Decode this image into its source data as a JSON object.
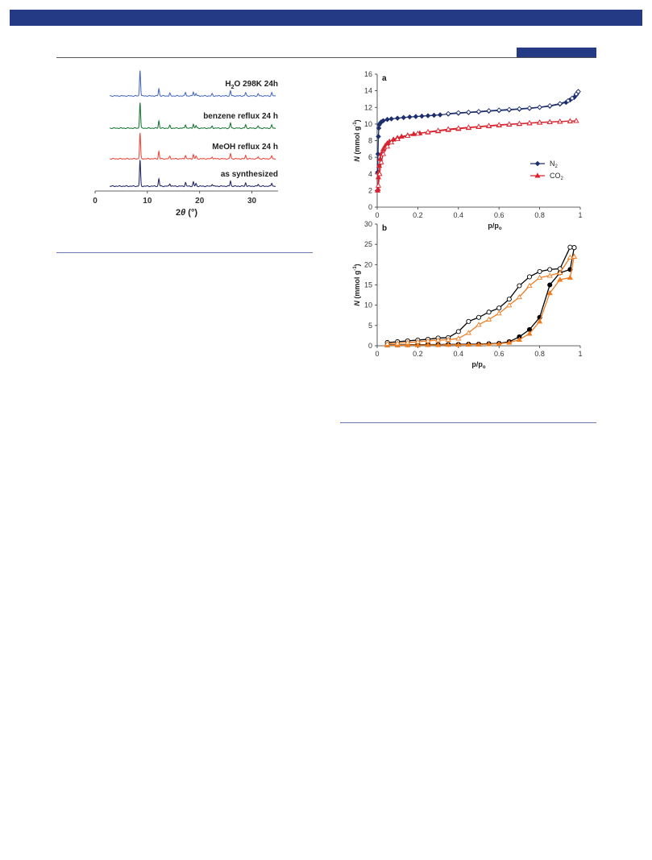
{
  "colors": {
    "header": "#253a85",
    "rule": "#6a78b8"
  },
  "chart_data": [
    {
      "id": "pxrd",
      "type": "line",
      "xlabel": "2θ (°)",
      "xlim": [
        0,
        35
      ],
      "xticks": [
        0,
        10,
        20,
        30
      ],
      "peaks": [
        8.6,
        12.2,
        14.3,
        17.3,
        18.8,
        19.3,
        22.4,
        25.9,
        28.8,
        31.2,
        33.8
      ],
      "heights": [
        1.0,
        0.28,
        0.1,
        0.14,
        0.16,
        0.1,
        0.08,
        0.2,
        0.13,
        0.08,
        0.12
      ],
      "series": [
        {
          "name": "H2O 298K 24h",
          "label_main": "H",
          "label_sub": "2",
          "label_rest": "O 298K 24h",
          "color": "#4f6ec2",
          "scale": 1.0
        },
        {
          "name": "benzene reflux 24 h",
          "label_main": "benzene reflux 24 h",
          "color": "#1f7a3a",
          "scale": 1.0
        },
        {
          "name": "MeOH reflux 24 h",
          "label_main": "MeOH reflux 24 h",
          "color": "#ec4a3f",
          "scale": 1.0
        },
        {
          "name": "as synthesized",
          "label_main": "as synthesized",
          "color": "#262a6b",
          "scale": 1.0
        }
      ]
    },
    {
      "id": "panel-a",
      "type": "scatter",
      "panel_label": "a",
      "ylabel": "N (mmol g⁻¹)",
      "xlabel": "p/p₀",
      "xlim": [
        0,
        1
      ],
      "ylim": [
        0,
        16
      ],
      "xticks": [
        0,
        0.2,
        0.4,
        0.6,
        0.8,
        1
      ],
      "yticks": [
        0,
        2,
        4,
        6,
        8,
        10,
        12,
        14,
        16
      ],
      "legend_position": "right",
      "series": [
        {
          "name": "N2",
          "legend_main": "N",
          "legend_sub": "2",
          "color": "#1d2f6e",
          "marker": "diamond",
          "adsorption": {
            "x": [
              0.002,
              0.004,
              0.006,
              0.008,
              0.01,
              0.015,
              0.02,
              0.03,
              0.05,
              0.07,
              0.1,
              0.13,
              0.16,
              0.19,
              0.22,
              0.25,
              0.28,
              0.31,
              0.35,
              0.4,
              0.45,
              0.5,
              0.55,
              0.6,
              0.65,
              0.7,
              0.75,
              0.8,
              0.85,
              0.9,
              0.93,
              0.95,
              0.97,
              0.98,
              0.985,
              0.99
            ],
            "y": [
              4.2,
              6.4,
              8.5,
              9.5,
              9.9,
              10.1,
              10.25,
              10.4,
              10.55,
              10.62,
              10.7,
              10.78,
              10.85,
              10.9,
              10.95,
              11.0,
              11.05,
              11.1,
              11.2,
              11.3,
              11.38,
              11.45,
              11.55,
              11.62,
              11.7,
              11.78,
              11.88,
              12.0,
              12.15,
              12.4,
              12.6,
              12.9,
              13.2,
              13.5,
              13.7,
              13.9
            ]
          },
          "desorption": {
            "x": [
              0.99,
              0.98,
              0.96,
              0.94,
              0.9,
              0.85,
              0.8,
              0.75,
              0.7,
              0.65,
              0.6,
              0.55,
              0.5,
              0.45,
              0.4,
              0.35
            ],
            "y": [
              13.9,
              13.6,
              13.1,
              12.8,
              12.45,
              12.2,
              12.02,
              11.92,
              11.83,
              11.75,
              11.67,
              11.6,
              11.5,
              11.42,
              11.35,
              11.25
            ]
          }
        },
        {
          "name": "CO2",
          "legend_main": "CO",
          "legend_sub": "2",
          "color": "#d9232e",
          "marker": "triangle",
          "adsorption": {
            "x": [
              0.002,
              0.004,
              0.006,
              0.008,
              0.01,
              0.015,
              0.02,
              0.03,
              0.04,
              0.05,
              0.06,
              0.08,
              0.1,
              0.12,
              0.15,
              0.18,
              0.21,
              0.25,
              0.3,
              0.35,
              0.4,
              0.45,
              0.5,
              0.55,
              0.6,
              0.65,
              0.7,
              0.75,
              0.8,
              0.85,
              0.9,
              0.95,
              0.98
            ],
            "y": [
              2.0,
              2.2,
              3.6,
              4.2,
              5.0,
              5.8,
              6.4,
              7.0,
              7.4,
              7.7,
              7.9,
              8.15,
              8.35,
              8.5,
              8.65,
              8.8,
              8.9,
              9.0,
              9.15,
              9.3,
              9.42,
              9.55,
              9.65,
              9.75,
              9.85,
              9.95,
              10.02,
              10.1,
              10.18,
              10.24,
              10.3,
              10.35,
              10.38
            ]
          },
          "desorption": {
            "x": [
              0.98,
              0.95,
              0.9,
              0.85,
              0.8,
              0.75,
              0.7,
              0.65,
              0.6,
              0.55,
              0.5,
              0.45,
              0.4,
              0.35,
              0.3,
              0.25,
              0.2,
              0.15,
              0.1,
              0.07,
              0.05,
              0.03,
              0.02,
              0.012,
              0.006
            ],
            "y": [
              10.38,
              10.35,
              10.3,
              10.25,
              10.2,
              10.12,
              10.05,
              9.98,
              9.9,
              9.8,
              9.7,
              9.6,
              9.5,
              9.38,
              9.22,
              9.05,
              8.85,
              8.6,
              8.2,
              7.8,
              7.3,
              6.4,
              5.4,
              4.0,
              2.6
            ]
          }
        }
      ]
    },
    {
      "id": "panel-b",
      "type": "scatter",
      "panel_label": "b",
      "ylabel": "N (mmol g⁻¹)",
      "xlabel": "p/p₀",
      "xlim": [
        0,
        1
      ],
      "ylim": [
        0,
        30
      ],
      "xticks": [
        0,
        0.2,
        0.4,
        0.6,
        0.8,
        1
      ],
      "yticks": [
        0,
        5,
        10,
        15,
        20,
        25,
        30
      ],
      "series": [
        {
          "name": "black circles",
          "color": "#000000",
          "marker": "circle",
          "adsorption": {
            "x": [
              0.05,
              0.1,
              0.15,
              0.2,
              0.25,
              0.3,
              0.35,
              0.4,
              0.45,
              0.5,
              0.55,
              0.6,
              0.65,
              0.7,
              0.75,
              0.8,
              0.85,
              0.9,
              0.95,
              0.97
            ],
            "y": [
              0.2,
              0.2,
              0.25,
              0.25,
              0.3,
              0.3,
              0.35,
              0.35,
              0.4,
              0.4,
              0.5,
              0.6,
              1.0,
              2.2,
              4.0,
              7.0,
              15.0,
              18.0,
              18.8,
              24.2
            ]
          },
          "desorption": {
            "x": [
              0.97,
              0.95,
              0.9,
              0.85,
              0.8,
              0.75,
              0.7,
              0.65,
              0.6,
              0.55,
              0.5,
              0.45,
              0.4,
              0.35,
              0.3,
              0.25,
              0.2,
              0.15,
              0.1,
              0.05
            ],
            "y": [
              24.2,
              24.3,
              19.0,
              18.8,
              18.3,
              17.0,
              14.8,
              11.5,
              9.3,
              8.3,
              7.0,
              6.0,
              3.5,
              2.0,
              1.9,
              1.6,
              1.4,
              1.2,
              1.0,
              0.8
            ]
          }
        },
        {
          "name": "orange triangles",
          "color": "#ee7d22",
          "marker": "triangle",
          "adsorption": {
            "x": [
              0.05,
              0.1,
              0.15,
              0.2,
              0.25,
              0.3,
              0.35,
              0.4,
              0.45,
              0.5,
              0.55,
              0.6,
              0.65,
              0.7,
              0.75,
              0.8,
              0.85,
              0.9,
              0.95,
              0.97
            ],
            "y": [
              0.1,
              0.1,
              0.15,
              0.15,
              0.2,
              0.2,
              0.25,
              0.25,
              0.3,
              0.3,
              0.4,
              0.5,
              0.8,
              1.5,
              3.0,
              6.0,
              13.0,
              16.3,
              16.8,
              22.0
            ]
          },
          "desorption": {
            "x": [
              0.97,
              0.95,
              0.9,
              0.85,
              0.8,
              0.75,
              0.7,
              0.65,
              0.6,
              0.55,
              0.5,
              0.45,
              0.4,
              0.35,
              0.3,
              0.25,
              0.2,
              0.15,
              0.1,
              0.05
            ],
            "y": [
              22.0,
              21.8,
              18.0,
              17.3,
              16.8,
              14.8,
              12.0,
              10.0,
              8.0,
              6.5,
              5.2,
              3.2,
              1.8,
              1.5,
              1.4,
              1.2,
              1.0,
              0.8,
              0.6,
              0.5
            ]
          }
        }
      ]
    }
  ]
}
